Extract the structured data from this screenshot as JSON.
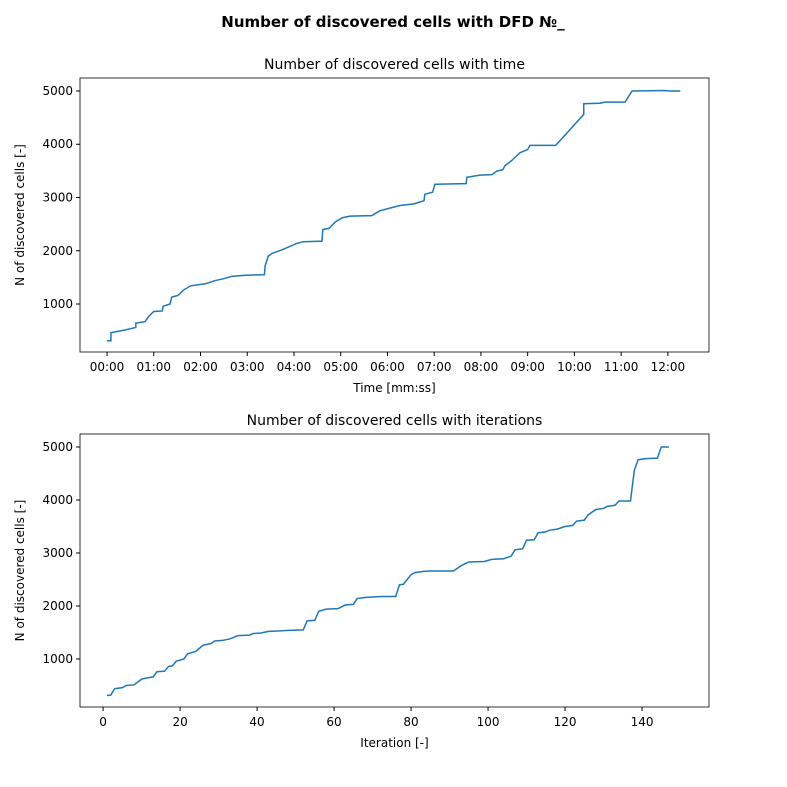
{
  "title": "Number of discovered cells with DFD №_",
  "chart_data": [
    {
      "type": "line",
      "title": "Number of discovered cells with time",
      "xlabel": "Time [mm:ss]",
      "ylabel": "N of discovered cells [-]",
      "color": "#1f77b4",
      "x": [
        0,
        5,
        5,
        22,
        37,
        37,
        49,
        53,
        60,
        71,
        72,
        81,
        83,
        91,
        98,
        107,
        126,
        139,
        151,
        160,
        177,
        202,
        203,
        207,
        212,
        225,
        244,
        252,
        276,
        277,
        285,
        293,
        302,
        312,
        340,
        350,
        363,
        376,
        394,
        407,
        408,
        418,
        421,
        461,
        462,
        479,
        494,
        501,
        508,
        511,
        520,
        530,
        540,
        543,
        576,
        612,
        612,
        633,
        639,
        665,
        674,
        716,
        723,
        736
      ],
      "values": [
        310,
        310,
        460,
        510,
        560,
        640,
        670,
        760,
        860,
        870,
        960,
        1000,
        1130,
        1160,
        1260,
        1340,
        1380,
        1440,
        1480,
        1520,
        1540,
        1550,
        1720,
        1900,
        1950,
        2020,
        2140,
        2170,
        2180,
        2400,
        2420,
        2540,
        2620,
        2650,
        2660,
        2750,
        2800,
        2850,
        2880,
        2940,
        3060,
        3100,
        3250,
        3260,
        3380,
        3420,
        3430,
        3500,
        3520,
        3600,
        3700,
        3840,
        3900,
        3980,
        3980,
        4560,
        4760,
        4770,
        4790,
        4790,
        5000,
        5010,
        5000,
        5000
      ],
      "xlim": [
        -34.7,
        772.8
      ],
      "ylim": [
        99,
        5244
      ],
      "xticks": [
        {
          "value": 0,
          "label": "00:00"
        },
        {
          "value": 60,
          "label": "01:00"
        },
        {
          "value": 120,
          "label": "02:00"
        },
        {
          "value": 180,
          "label": "03:00"
        },
        {
          "value": 240,
          "label": "04:00"
        },
        {
          "value": 300,
          "label": "05:00"
        },
        {
          "value": 360,
          "label": "06:00"
        },
        {
          "value": 420,
          "label": "07:00"
        },
        {
          "value": 480,
          "label": "08:00"
        },
        {
          "value": 540,
          "label": "09:00"
        },
        {
          "value": 600,
          "label": "10:00"
        },
        {
          "value": 660,
          "label": "11:00"
        },
        {
          "value": 720,
          "label": "12:00"
        }
      ],
      "yticks": [
        1000,
        2000,
        3000,
        4000,
        5000
      ]
    },
    {
      "type": "line",
      "title": "Number of discovered cells with iterations",
      "xlabel": "Iteration [-]",
      "ylabel": "N of discovered cells [-]",
      "color": "#1f77b4",
      "x": [
        1,
        2,
        3,
        5,
        6,
        8,
        10,
        12,
        13,
        14,
        16,
        17,
        18,
        19,
        21,
        22,
        24,
        25,
        26,
        28,
        29,
        31,
        33,
        35,
        38,
        39,
        41,
        43,
        46,
        48,
        52,
        53,
        55,
        56,
        58,
        61,
        63,
        65,
        66,
        68,
        70,
        73,
        76,
        77,
        78,
        80,
        81,
        83,
        85,
        91,
        93,
        95,
        99,
        101,
        104,
        106,
        107,
        109,
        110,
        112,
        113,
        115,
        116,
        118,
        120,
        122,
        123,
        125,
        126,
        128,
        130,
        131,
        133,
        134,
        137,
        138,
        139,
        141,
        144,
        145,
        146,
        147
      ],
      "values": [
        310,
        320,
        440,
        460,
        500,
        510,
        620,
        650,
        660,
        760,
        770,
        860,
        870,
        960,
        1000,
        1100,
        1140,
        1200,
        1260,
        1290,
        1340,
        1350,
        1380,
        1440,
        1450,
        1480,
        1490,
        1520,
        1530,
        1540,
        1550,
        1720,
        1730,
        1900,
        1940,
        1950,
        2020,
        2030,
        2140,
        2160,
        2170,
        2180,
        2180,
        2400,
        2410,
        2590,
        2630,
        2650,
        2660,
        2660,
        2760,
        2830,
        2840,
        2880,
        2890,
        2940,
        3060,
        3080,
        3240,
        3250,
        3380,
        3400,
        3430,
        3450,
        3500,
        3520,
        3600,
        3620,
        3720,
        3820,
        3840,
        3880,
        3900,
        3980,
        3980,
        4560,
        4760,
        4780,
        4790,
        5000,
        5000,
        5000
      ],
      "xlim": [
        -6,
        157.4
      ],
      "ylim": [
        94,
        5245
      ],
      "xticks": [
        0,
        20,
        40,
        60,
        80,
        100,
        120,
        140
      ],
      "yticks": [
        1000,
        2000,
        3000,
        4000,
        5000
      ]
    }
  ]
}
